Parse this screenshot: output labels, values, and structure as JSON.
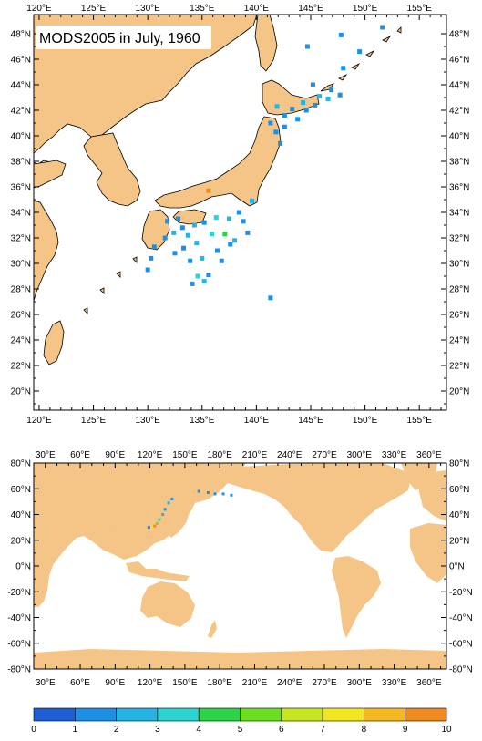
{
  "title": "MODS2005 in July, 1960",
  "colors": {
    "land": "#f4c586",
    "ocean": "#ffffff",
    "frame": "#000000"
  },
  "top_map": {
    "lon_ticks": [
      "120°E",
      "125°E",
      "130°E",
      "135°E",
      "140°E",
      "145°E",
      "150°E",
      "155°E"
    ],
    "lat_ticks": [
      "48°N",
      "46°N",
      "44°N",
      "42°N",
      "40°N",
      "38°N",
      "36°N",
      "34°N",
      "32°N",
      "30°N",
      "28°N",
      "26°N",
      "24°N",
      "22°N",
      "20°N"
    ],
    "lon_range": [
      119.5,
      157.5
    ],
    "lat_range": [
      18.5,
      49.5
    ]
  },
  "bottom_map": {
    "lon_ticks": [
      "30°E",
      "60°E",
      "90°E",
      "120°E",
      "150°E",
      "180°E",
      "210°E",
      "240°E",
      "270°E",
      "300°E",
      "330°E",
      "360°E"
    ],
    "lat_ticks": [
      "80°N",
      "60°N",
      "40°N",
      "20°N",
      "0°N",
      "-20°N",
      "-40°N",
      "-60°N",
      "-80°N"
    ],
    "lon_range": [
      20,
      375
    ],
    "lat_range": [
      -80,
      80
    ]
  },
  "colorbar": {
    "labels": [
      "0",
      "1",
      "2",
      "3",
      "4",
      "5",
      "6",
      "7",
      "8",
      "9",
      "10"
    ],
    "colors": [
      "#1e5fd6",
      "#1e8fe6",
      "#24b4e6",
      "#2ad4d0",
      "#2cd44a",
      "#6ce020",
      "#c8e620",
      "#f2e61e",
      "#f5b81e",
      "#f08a1e",
      "#e8501e"
    ]
  },
  "chart_data": {
    "type": "heatmap",
    "title": "MODS2005 in July, 1960",
    "xlabel": "",
    "ylabel": "",
    "value_range": [
      0,
      10
    ],
    "cells": [
      {
        "lon": 147.8,
        "lat": 47.9,
        "v": 1
      },
      {
        "lon": 151.6,
        "lat": 48.5,
        "v": 1
      },
      {
        "lon": 144.7,
        "lat": 47.0,
        "v": 1
      },
      {
        "lon": 149.5,
        "lat": 46.6,
        "v": 1
      },
      {
        "lon": 148.0,
        "lat": 45.3,
        "v": 1
      },
      {
        "lon": 145.2,
        "lat": 44.0,
        "v": 1
      },
      {
        "lon": 146.9,
        "lat": 43.6,
        "v": 1
      },
      {
        "lon": 147.7,
        "lat": 43.2,
        "v": 1
      },
      {
        "lon": 146.6,
        "lat": 42.9,
        "v": 2
      },
      {
        "lon": 145.4,
        "lat": 42.4,
        "v": 1
      },
      {
        "lon": 144.6,
        "lat": 42.0,
        "v": 1
      },
      {
        "lon": 143.3,
        "lat": 42.1,
        "v": 1
      },
      {
        "lon": 142.6,
        "lat": 41.6,
        "v": 1
      },
      {
        "lon": 141.9,
        "lat": 42.3,
        "v": 2
      },
      {
        "lon": 141.3,
        "lat": 41.0,
        "v": 1
      },
      {
        "lon": 141.8,
        "lat": 40.3,
        "v": 1
      },
      {
        "lon": 142.2,
        "lat": 39.4,
        "v": 1
      },
      {
        "lon": 142.6,
        "lat": 40.7,
        "v": 1
      },
      {
        "lon": 143.8,
        "lat": 41.3,
        "v": 1
      },
      {
        "lon": 144.3,
        "lat": 42.6,
        "v": 2
      },
      {
        "lon": 145.8,
        "lat": 43.1,
        "v": 2
      },
      {
        "lon": 135.6,
        "lat": 35.7,
        "v": 9
      },
      {
        "lon": 139.6,
        "lat": 34.9,
        "v": 2
      },
      {
        "lon": 138.4,
        "lat": 34.0,
        "v": 1
      },
      {
        "lon": 137.5,
        "lat": 33.5,
        "v": 2
      },
      {
        "lon": 136.3,
        "lat": 33.6,
        "v": 3
      },
      {
        "lon": 135.2,
        "lat": 33.2,
        "v": 1
      },
      {
        "lon": 134.3,
        "lat": 33.0,
        "v": 2
      },
      {
        "lon": 133.2,
        "lat": 32.8,
        "v": 1
      },
      {
        "lon": 132.4,
        "lat": 32.4,
        "v": 2
      },
      {
        "lon": 131.6,
        "lat": 32.0,
        "v": 1
      },
      {
        "lon": 130.6,
        "lat": 31.3,
        "v": 1
      },
      {
        "lon": 130.3,
        "lat": 30.4,
        "v": 1
      },
      {
        "lon": 130.0,
        "lat": 29.5,
        "v": 1
      },
      {
        "lon": 133.3,
        "lat": 31.2,
        "v": 1
      },
      {
        "lon": 134.5,
        "lat": 31.6,
        "v": 2
      },
      {
        "lon": 135.9,
        "lat": 32.3,
        "v": 3
      },
      {
        "lon": 137.1,
        "lat": 32.3,
        "v": 4
      },
      {
        "lon": 137.6,
        "lat": 31.5,
        "v": 1
      },
      {
        "lon": 136.4,
        "lat": 31.0,
        "v": 1
      },
      {
        "lon": 135.0,
        "lat": 30.4,
        "v": 2
      },
      {
        "lon": 133.9,
        "lat": 30.2,
        "v": 1
      },
      {
        "lon": 132.5,
        "lat": 30.8,
        "v": 1
      },
      {
        "lon": 134.6,
        "lat": 29.0,
        "v": 3
      },
      {
        "lon": 135.2,
        "lat": 28.6,
        "v": 2
      },
      {
        "lon": 134.1,
        "lat": 28.4,
        "v": 1
      },
      {
        "lon": 135.6,
        "lat": 29.1,
        "v": 1
      },
      {
        "lon": 138.8,
        "lat": 33.3,
        "v": 1
      },
      {
        "lon": 139.2,
        "lat": 32.4,
        "v": 1
      },
      {
        "lon": 138.0,
        "lat": 31.8,
        "v": 2
      },
      {
        "lon": 136.8,
        "lat": 30.2,
        "v": 1
      },
      {
        "lon": 133.7,
        "lat": 32.2,
        "v": 2
      },
      {
        "lon": 132.8,
        "lat": 33.5,
        "v": 1
      },
      {
        "lon": 131.8,
        "lat": 33.3,
        "v": 1
      },
      {
        "lon": 141.3,
        "lat": 27.3,
        "v": 1
      }
    ],
    "global_cells": [
      {
        "lon": 122,
        "lat": 30,
        "v": 7
      },
      {
        "lon": 124,
        "lat": 31,
        "v": 9
      },
      {
        "lon": 126,
        "lat": 33,
        "v": 5
      },
      {
        "lon": 128,
        "lat": 36,
        "v": 3
      },
      {
        "lon": 131,
        "lat": 40,
        "v": 2
      },
      {
        "lon": 133,
        "lat": 44,
        "v": 1
      },
      {
        "lon": 136,
        "lat": 49,
        "v": 2
      },
      {
        "lon": 139,
        "lat": 52,
        "v": 1
      },
      {
        "lon": 119,
        "lat": 30,
        "v": 1
      },
      {
        "lon": 162,
        "lat": 58,
        "v": 1
      },
      {
        "lon": 170,
        "lat": 57,
        "v": 1
      },
      {
        "lon": 176,
        "lat": 56,
        "v": 1
      },
      {
        "lon": 183,
        "lat": 56,
        "v": 1
      },
      {
        "lon": 190,
        "lat": 55,
        "v": 1
      }
    ]
  }
}
